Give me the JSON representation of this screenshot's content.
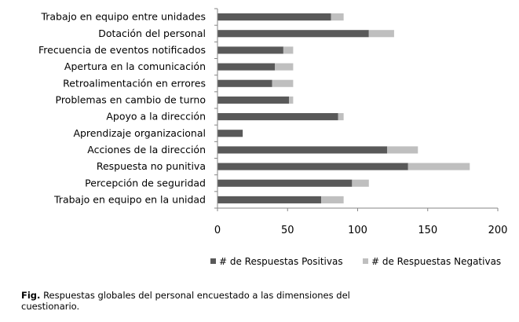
{
  "chart_data": {
    "type": "bar",
    "orientation": "horizontal",
    "stacked": true,
    "categories": [
      "Trabajo en equipo entre unidades",
      "Dotación del personal",
      "Frecuencia de eventos notificados",
      "Apertura en la comunicación",
      "Retroalimentación en errores",
      "Problemas en cambio de turno",
      "Apoyo a la dirección",
      "Aprendizaje organizacional",
      "Acciones de la dirección",
      "Respuesta no punitiva",
      "Percepción de seguridad",
      "Trabajo en equipo en la unidad"
    ],
    "series": [
      {
        "name": "# de Respuestas Positivas",
        "color": "#595959",
        "values": [
          81,
          108,
          47,
          41,
          39,
          51,
          86,
          18,
          121,
          136,
          96,
          74
        ]
      },
      {
        "name": "# de Respuestas Negativas",
        "color": "#bfbfbf",
        "values": [
          9,
          18,
          7,
          13,
          15,
          3,
          4,
          0,
          22,
          44,
          12,
          16
        ]
      }
    ],
    "xlim": [
      0,
      200
    ],
    "xticks": [
      0,
      50,
      100,
      150,
      200
    ],
    "grid": false,
    "legend_position": "bottom"
  },
  "caption": {
    "label": "Fig.",
    "text": "Respuestas globales del personal encuestado a las dimensiones del cuestionario."
  }
}
